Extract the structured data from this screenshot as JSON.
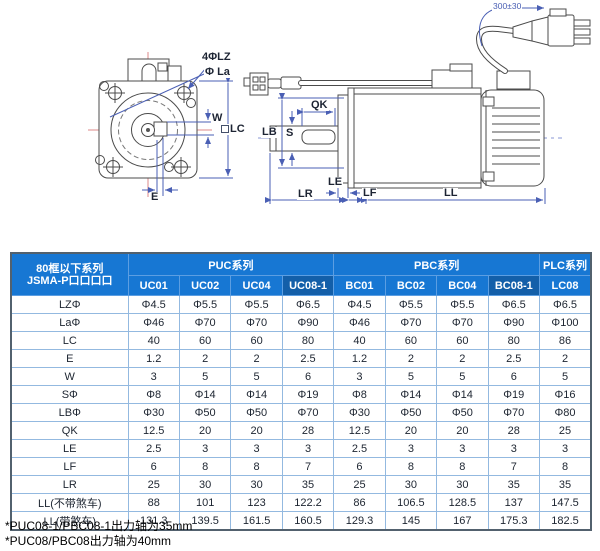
{
  "drawing": {
    "front_view": {
      "bolt_hole_label": "4ΦLZ",
      "flange_circle_label": "Φ La",
      "key_width_label": "W",
      "frame_label": "LC",
      "offset_label": "E"
    },
    "side_view": {
      "cable_length_label": "300±30",
      "key_length_label": "QK",
      "pilot_label": "LB",
      "shaft_label": "S",
      "le_label": "LE",
      "lr_label": "LR",
      "lf_label": "LF",
      "ll_label": "LL"
    }
  },
  "table": {
    "corner": {
      "line1": "80框以下系列",
      "line2": "JSMA-P口口口口"
    },
    "groups": [
      {
        "label": "PUC系列",
        "span": 4
      },
      {
        "label": "PBC系列",
        "span": 4
      },
      {
        "label": "PLC系列",
        "span": 1
      }
    ],
    "columns": [
      "UC01",
      "UC02",
      "UC04",
      "UC08-1",
      "BC01",
      "BC02",
      "BC04",
      "BC08-1",
      "LC08"
    ],
    "highlight_columns": [
      3,
      7
    ],
    "rows": [
      {
        "label": "LZΦ",
        "values": [
          "Φ4.5",
          "Φ5.5",
          "Φ5.5",
          "Φ6.5",
          "Φ4.5",
          "Φ5.5",
          "Φ5.5",
          "Φ6.5",
          "Φ6.5"
        ]
      },
      {
        "label": "LaΦ",
        "values": [
          "Φ46",
          "Φ70",
          "Φ70",
          "Φ90",
          "Φ46",
          "Φ70",
          "Φ70",
          "Φ90",
          "Φ100"
        ]
      },
      {
        "label": "LC",
        "values": [
          "40",
          "60",
          "60",
          "80",
          "40",
          "60",
          "60",
          "80",
          "86"
        ]
      },
      {
        "label": "E",
        "values": [
          "1.2",
          "2",
          "2",
          "2.5",
          "1.2",
          "2",
          "2",
          "2.5",
          "2"
        ]
      },
      {
        "label": "W",
        "values": [
          "3",
          "5",
          "5",
          "6",
          "3",
          "5",
          "5",
          "6",
          "5"
        ]
      },
      {
        "label": "SΦ",
        "values": [
          "Φ8",
          "Φ14",
          "Φ14",
          "Φ19",
          "Φ8",
          "Φ14",
          "Φ14",
          "Φ19",
          "Φ16"
        ]
      },
      {
        "label": "LBΦ",
        "values": [
          "Φ30",
          "Φ50",
          "Φ50",
          "Φ70",
          "Φ30",
          "Φ50",
          "Φ50",
          "Φ70",
          "Φ80"
        ]
      },
      {
        "label": "QK",
        "values": [
          "12.5",
          "20",
          "20",
          "28",
          "12.5",
          "20",
          "20",
          "28",
          "25"
        ]
      },
      {
        "label": "LE",
        "values": [
          "2.5",
          "3",
          "3",
          "3",
          "2.5",
          "3",
          "3",
          "3",
          "3"
        ]
      },
      {
        "label": "LF",
        "values": [
          "6",
          "8",
          "8",
          "7",
          "6",
          "8",
          "8",
          "7",
          "8"
        ]
      },
      {
        "label": "LR",
        "values": [
          "25",
          "30",
          "30",
          "35",
          "25",
          "30",
          "30",
          "35",
          "35"
        ]
      },
      {
        "label": "LL(不带煞车)",
        "values": [
          "88",
          "101",
          "123",
          "122.2",
          "86",
          "106.5",
          "128.5",
          "137",
          "147.5"
        ]
      },
      {
        "label": "LL(带煞车)",
        "values": [
          "131.3",
          "139.5",
          "161.5",
          "160.5",
          "129.3",
          "145",
          "167",
          "175.3",
          "182.5"
        ]
      }
    ]
  },
  "footnotes": [
    "*PUC08-1/PBC08-1出力轴为35mm",
    "*PUC08/PBC08出力轴为40mm"
  ],
  "colors": {
    "header_blue": "#1777d3",
    "header_dark_blue": "#135fa9",
    "grid_line": "#93b9e0",
    "outer_border": "#52616e",
    "dimension_blue": "#4a5fb4",
    "centerline_red": "#dd8a8a",
    "text_dark": "#1c2430"
  }
}
